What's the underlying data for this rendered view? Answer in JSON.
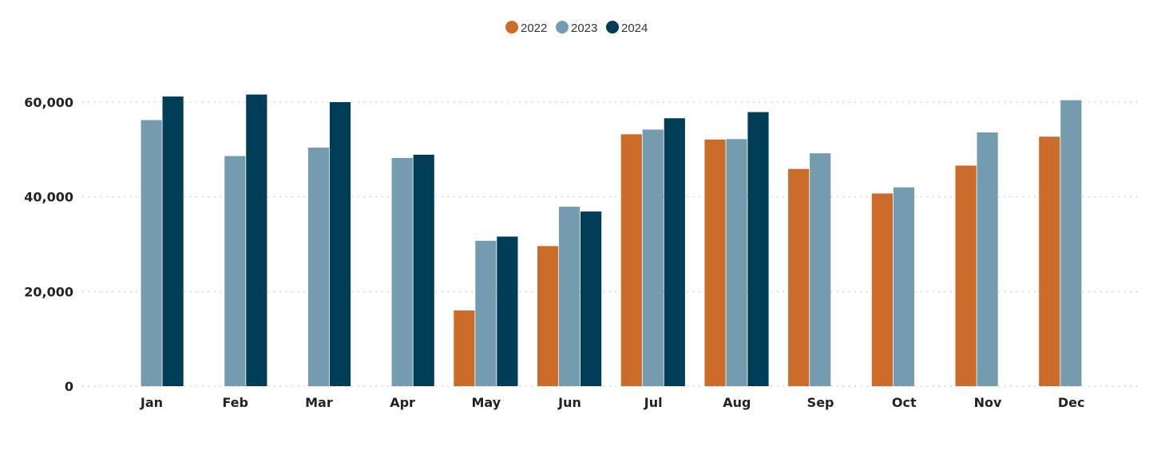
{
  "chart_data": {
    "type": "bar",
    "categories": [
      "Jan",
      "Feb",
      "Mar",
      "Apr",
      "May",
      "Jun",
      "Jul",
      "Aug",
      "Sep",
      "Oct",
      "Nov",
      "Dec"
    ],
    "series": [
      {
        "name": "2022",
        "color": "#CC6C2A",
        "values": [
          null,
          null,
          null,
          null,
          16000,
          29600,
          53200,
          52100,
          45900,
          40700,
          46600,
          52700
        ]
      },
      {
        "name": "2023",
        "color": "#759CAE",
        "values": [
          56200,
          48600,
          50400,
          48200,
          30700,
          37900,
          54200,
          52200,
          49200,
          42000,
          53600,
          60400
        ]
      },
      {
        "name": "2024",
        "color": "#003E57",
        "values": [
          61200,
          61600,
          60000,
          48900,
          31600,
          36900,
          56600,
          57900,
          null,
          null,
          null,
          null
        ]
      }
    ],
    "yticks": [
      0,
      20000,
      40000,
      60000
    ],
    "ytick_labels": [
      "0",
      "20,000",
      "40,000",
      "60,000"
    ],
    "ylim": [
      0,
      60000
    ],
    "grid": true,
    "legend_position": "top-center"
  }
}
